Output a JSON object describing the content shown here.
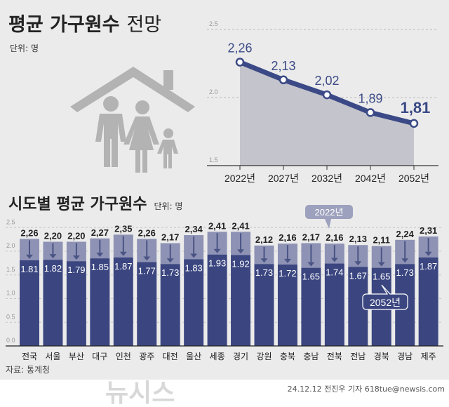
{
  "title_main": "평균 가구원수",
  "title_sub": "전망",
  "unit_top": "단위: 명",
  "title_bottom": "시도별 평균 가구원수",
  "unit_bottom": "단위: 명",
  "source": "자료: 통계청",
  "credit": "24.12.12 전진우 기자 618tue@newsis.com",
  "watermark": "뉴시스",
  "colors": {
    "background": "#ebebeb",
    "dark_bar": "#3b4680",
    "light_bar": "#8e92b4",
    "line": "#3b4a86",
    "area": "#c4c4cc"
  },
  "chart_data": [
    {
      "type": "area",
      "categories": [
        "2022년",
        "2027년",
        "2032년",
        "2042년",
        "2052년"
      ],
      "values": [
        2.26,
        2.13,
        2.02,
        1.89,
        1.81
      ],
      "value_labels": [
        "2,26",
        "2,13",
        "2,02",
        "1,89",
        "1,81"
      ],
      "yticks": [
        "1.5",
        "2.0",
        "2.5"
      ],
      "ylim": [
        1.5,
        2.5
      ],
      "grid": true
    },
    {
      "type": "bar",
      "categories": [
        "전국",
        "서울",
        "부산",
        "대구",
        "인천",
        "광주",
        "대전",
        "울산",
        "세종",
        "경기",
        "강원",
        "충북",
        "충남",
        "전북",
        "전남",
        "경북",
        "경남",
        "제주"
      ],
      "series": [
        {
          "name": "2022년",
          "values": [
            2.26,
            2.2,
            2.2,
            2.27,
            2.35,
            2.26,
            2.17,
            2.34,
            2.41,
            2.41,
            2.12,
            2.16,
            2.17,
            2.16,
            2.13,
            2.11,
            2.24,
            2.31
          ]
        },
        {
          "name": "2052년",
          "values": [
            1.81,
            1.82,
            1.79,
            1.85,
            1.87,
            1.77,
            1.73,
            1.83,
            1.93,
            1.92,
            1.73,
            1.72,
            1.65,
            1.74,
            1.67,
            1.65,
            1.73,
            1.87
          ]
        }
      ],
      "yticks": [
        "0.0",
        "0.5",
        "1.0",
        "1.5",
        "2.0",
        "2.5"
      ],
      "ylim": [
        0,
        2.5
      ],
      "grid": true,
      "legend": "callouts"
    }
  ]
}
